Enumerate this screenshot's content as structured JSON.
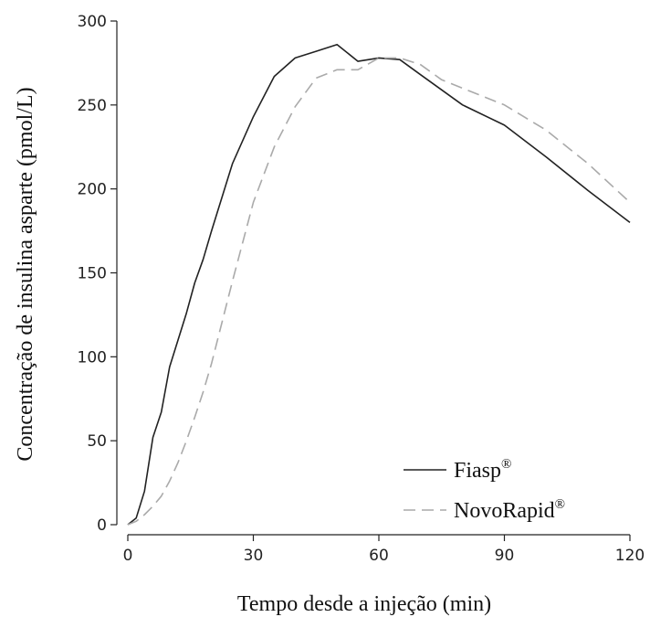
{
  "chart_data": {
    "type": "line",
    "xlabel": "Tempo desde a injeção (min)",
    "ylabel": "Concentração de insulina asparte (pmol/L)",
    "xlim": [
      0,
      120
    ],
    "ylim": [
      0,
      300
    ],
    "xticks": [
      0,
      30,
      60,
      90,
      120
    ],
    "yticks": [
      0,
      50,
      100,
      150,
      200,
      250,
      300
    ],
    "grid": false,
    "legend_position": "bottom-right",
    "series": [
      {
        "name": "Fiasp",
        "name_sup": "®",
        "color": "#222222",
        "dash": "solid",
        "x": [
          0,
          2,
          4,
          6,
          8,
          10,
          12,
          14,
          16,
          18,
          20,
          25,
          30,
          35,
          40,
          45,
          50,
          55,
          60,
          65,
          70,
          80,
          90,
          100,
          110,
          120
        ],
        "y": [
          0,
          4,
          20,
          52,
          67,
          94,
          110,
          126,
          144,
          158,
          175,
          215,
          243,
          267,
          278,
          282,
          286,
          276,
          278,
          277,
          268,
          250,
          238,
          219,
          199,
          180
        ]
      },
      {
        "name": "NovoRapid",
        "name_sup": "®",
        "color": "#aaaaaa",
        "dash": "dashed",
        "x": [
          0,
          2,
          4,
          6,
          8,
          10,
          12,
          14,
          16,
          18,
          20,
          25,
          30,
          35,
          40,
          45,
          50,
          55,
          60,
          65,
          70,
          75,
          80,
          90,
          100,
          110,
          120
        ],
        "y": [
          0,
          2,
          6,
          11,
          17,
          26,
          37,
          50,
          64,
          79,
          96,
          145,
          192,
          225,
          249,
          266,
          271,
          271,
          278,
          278,
          274,
          265,
          260,
          250,
          235,
          215,
          192
        ]
      }
    ]
  }
}
